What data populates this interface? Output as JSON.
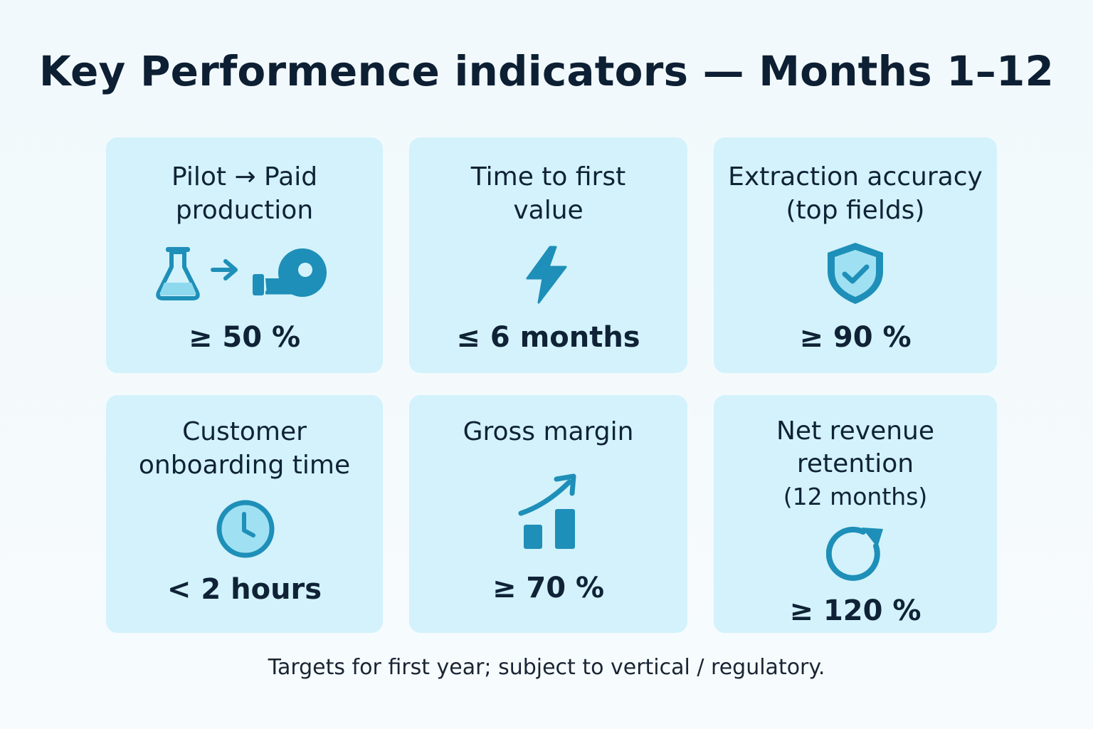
{
  "title": "Key Performence indicators — Months 1–12",
  "colors": {
    "background": "#f3fafc",
    "card": "#d3f2fb",
    "icon_primary": "#1e8fb8",
    "icon_fill": "#9fe1f3",
    "text": "#0f2236"
  },
  "cards": [
    {
      "label_line1": "Pilot → Paid",
      "label_line2": "production",
      "icon": "flask-arrow-hand-icon",
      "value": "≥ 50 %"
    },
    {
      "label_line1": "Time to first",
      "label_line2": "value",
      "icon": "lightning-icon",
      "value": "≤ 6 months"
    },
    {
      "label_line1": "Extraction accuracy",
      "label_line2": "(top fields)",
      "icon": "shield-check-icon",
      "value": "≥ 90 %"
    },
    {
      "label_line1": "Customer",
      "label_line2": "onboarding time",
      "icon": "clock-icon",
      "value": "< 2 hours"
    },
    {
      "label_line1": "Gross margin",
      "icon": "bar-chart-trend-up-icon",
      "value": "≥ 70 %"
    },
    {
      "label_line1": "Net revenue",
      "label_line2": "retention",
      "label_line3": "(12 months)",
      "icon": "refresh-cycle-icon",
      "value": "≥ 120 %"
    }
  ],
  "footnote": "Targets for first year; subject to vertical / regulatory."
}
